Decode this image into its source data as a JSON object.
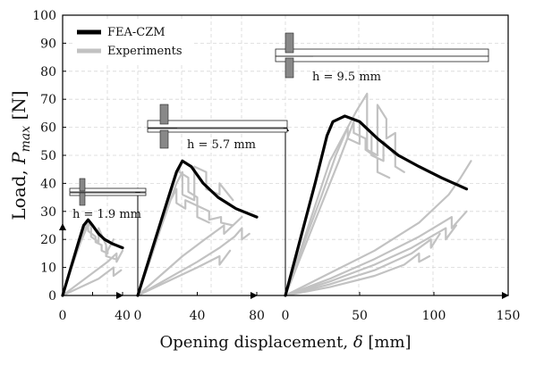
{
  "chart_data": {
    "type": "line",
    "ylabel": "Load, P_max [N]",
    "xlabel": "Opening displacement, δ [mm]",
    "ylim": [
      0,
      100
    ],
    "yticks": [
      0,
      10,
      20,
      30,
      40,
      50,
      60,
      70,
      80,
      90,
      100
    ],
    "grid": true,
    "legend": {
      "position": "top-left",
      "entries": [
        {
          "name": "FEA-CZM",
          "color": "#000000"
        },
        {
          "name": "Experiments",
          "color": "#c2c2c2"
        }
      ]
    },
    "panels": [
      {
        "annotation": "h = 1.9 mm",
        "xlim": [
          0,
          40
        ],
        "xticks": [
          0,
          20,
          40
        ],
        "xtick_labels": [
          "0",
          "",
          "40"
        ],
        "series": [
          {
            "name": "FEA-CZM",
            "x": [
              0,
              5,
              10,
              14,
              17,
              20,
              24,
              28,
              33,
              40
            ],
            "y": [
              0,
              9,
              18,
              25,
              27,
              25,
              22,
              20,
              18.5,
              17
            ]
          },
          {
            "name": "Experiments",
            "x": [
              0,
              5,
              10,
              14,
              17,
              17,
              22,
              22,
              26,
              26,
              30,
              30,
              34
            ],
            "y": [
              0,
              9,
              17,
              23,
              26,
              23,
              21,
              19,
              18,
              16,
              15,
              16,
              20
            ]
          },
          {
            "name": "Experiments",
            "x": [
              0,
              6,
              12,
              16,
              19,
              19,
              24,
              24,
              29,
              29,
              35
            ],
            "y": [
              0,
              10,
              19,
              24,
              26,
              21,
              19,
              24,
              18,
              14,
              13
            ]
          },
          {
            "name": "Experiments",
            "x": [
              0,
              10,
              20,
              30,
              36,
              36,
              40
            ],
            "y": [
              0,
              4,
              8,
              12,
              15,
              12,
              16
            ]
          },
          {
            "name": "Experiments",
            "x": [
              0,
              12,
              24,
              34,
              34,
              39
            ],
            "y": [
              0,
              3,
              6,
              10,
              7,
              9
            ]
          }
        ]
      },
      {
        "annotation": "h = 5.7 mm",
        "xlim": [
          0,
          80
        ],
        "xticks": [
          0,
          40,
          80
        ],
        "series": [
          {
            "name": "FEA-CZM",
            "x": [
              0,
              10,
              20,
              26,
              30,
              36,
              44,
              54,
              66,
              80
            ],
            "y": [
              0,
              17,
              34,
              44,
              48,
              46,
              40,
              35,
              31,
              28
            ]
          },
          {
            "name": "Experiments",
            "x": [
              0,
              8,
              16,
              24,
              28,
              28,
              34,
              34,
              40,
              40,
              48,
              48,
              56,
              56,
              64
            ],
            "y": [
              0,
              13,
              26,
              40,
              46,
              44,
              42,
              37,
              35,
              32,
              30,
              27,
              28,
              26,
              25
            ]
          },
          {
            "name": "Experiments",
            "x": [
              0,
              9,
              18,
              26,
              30,
              30,
              38,
              38,
              46,
              46,
              55,
              55,
              64
            ],
            "y": [
              0,
              14,
              28,
              40,
              44,
              36,
              34,
              46,
              44,
              38,
              36,
              40,
              34
            ]
          },
          {
            "name": "Experiments",
            "x": [
              0,
              8,
              16,
              22,
              26,
              26,
              32,
              32,
              40,
              40,
              48
            ],
            "y": [
              0,
              12,
              25,
              34,
              38,
              33,
              31,
              34,
              32,
              28,
              26
            ]
          },
          {
            "name": "Experiments",
            "x": [
              0,
              20,
              40,
              55,
              65,
              70,
              70,
              75
            ],
            "y": [
              0,
              6,
              12,
              17,
              21,
              24,
              20,
              22
            ]
          },
          {
            "name": "Experiments",
            "x": [
              0,
              15,
              30,
              45,
              58,
              58,
              70
            ],
            "y": [
              0,
              7,
              14,
              20,
              25,
              22,
              28
            ]
          },
          {
            "name": "Experiments",
            "x": [
              0,
              20,
              40,
              55,
              55,
              62
            ],
            "y": [
              0,
              5,
              10,
              14,
              11,
              16
            ]
          }
        ]
      },
      {
        "annotation": "h = 9.5 mm",
        "xlim": [
          0,
          150
        ],
        "xticks": [
          0,
          50,
          100,
          150
        ],
        "series": [
          {
            "name": "FEA-CZM",
            "x": [
              0,
              10,
              20,
              28,
              32,
              40,
              50,
              62,
              76,
              90,
              105,
              122
            ],
            "y": [
              0,
              20,
              40,
              57,
              62,
              64,
              62,
              56,
              50,
              46,
              42,
              38
            ]
          },
          {
            "name": "Experiments",
            "x": [
              0,
              10,
              20,
              30,
              40,
              48,
              55,
              55,
              62,
              62,
              68,
              68,
              74,
              74,
              80
            ],
            "y": [
              0,
              16,
              32,
              48,
              58,
              66,
              72,
              52,
              50,
              68,
              63,
              56,
              58,
              46,
              44
            ]
          },
          {
            "name": "Experiments",
            "x": [
              0,
              12,
              24,
              34,
              42,
              42,
              50,
              50,
              58,
              58,
              66,
              66,
              74
            ],
            "y": [
              0,
              18,
              35,
              50,
              60,
              56,
              54,
              62,
              58,
              50,
              48,
              55,
              50
            ]
          },
          {
            "name": "Experiments",
            "x": [
              0,
              12,
              24,
              36,
              46,
              46,
              54,
              54,
              62,
              62,
              70
            ],
            "y": [
              0,
              16,
              32,
              48,
              62,
              58,
              56,
              52,
              49,
              44,
              42
            ]
          },
          {
            "name": "Experiments",
            "x": [
              0,
              30,
              60,
              90,
              110,
              118,
              125
            ],
            "y": [
              0,
              8,
              16,
              26,
              36,
              42,
              48
            ]
          },
          {
            "name": "Experiments",
            "x": [
              0,
              30,
              60,
              90,
              112,
              112,
              122
            ],
            "y": [
              0,
              6,
              13,
              21,
              28,
              24,
              30
            ]
          },
          {
            "name": "Experiments",
            "x": [
              0,
              30,
              60,
              85,
              108,
              108,
              115
            ],
            "y": [
              0,
              5,
              11,
              17,
              24,
              20,
              25
            ]
          },
          {
            "name": "Experiments",
            "x": [
              0,
              30,
              60,
              85,
              98,
              98,
              104
            ],
            "y": [
              0,
              4,
              9,
              15,
              20,
              17,
              22
            ]
          },
          {
            "name": "Experiments",
            "x": [
              0,
              30,
              60,
              80,
              90,
              90,
              97
            ],
            "y": [
              0,
              3,
              7,
              11,
              15,
              12,
              14
            ]
          }
        ]
      }
    ]
  }
}
